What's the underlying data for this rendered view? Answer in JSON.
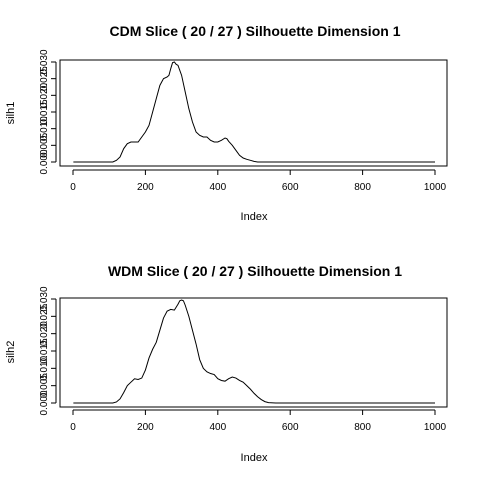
{
  "chart_data": [
    {
      "type": "line",
      "title": "CDM Slice ( 20 / 27 )  Silhouette Dimension 1",
      "xlabel": "Index",
      "ylabel": "silh1",
      "xlim": [
        0,
        1000
      ],
      "ylim": [
        0,
        0.031
      ],
      "xticks": [
        "0",
        "200",
        "400",
        "600",
        "800",
        "1000"
      ],
      "yticks": [
        "0.000",
        "0.005",
        "0.010",
        "0.015",
        "0.020",
        "0.025",
        "0.030"
      ],
      "grid": false,
      "series": [
        {
          "x": [
            1,
            110,
            120,
            130,
            140,
            150,
            160,
            170,
            180,
            190,
            200,
            210,
            220,
            230,
            240,
            250,
            260,
            265,
            270,
            275,
            280,
            285,
            290,
            300,
            310,
            320,
            330,
            340,
            350,
            360,
            370,
            380,
            390,
            400,
            410,
            420,
            425,
            430,
            440,
            450,
            460,
            470,
            480,
            490,
            500,
            510,
            520,
            600,
            700,
            800,
            900,
            1000
          ],
          "y": [
            0,
            0,
            0.0005,
            0.0015,
            0.004,
            0.0055,
            0.006,
            0.006,
            0.006,
            0.0075,
            0.009,
            0.011,
            0.015,
            0.019,
            0.023,
            0.025,
            0.0255,
            0.026,
            0.028,
            0.0298,
            0.03,
            0.0293,
            0.029,
            0.026,
            0.021,
            0.016,
            0.012,
            0.009,
            0.008,
            0.0075,
            0.0075,
            0.0065,
            0.006,
            0.006,
            0.0065,
            0.0072,
            0.007,
            0.0062,
            0.005,
            0.0035,
            0.002,
            0.0012,
            0.0008,
            0.0005,
            0.0002,
            0,
            0,
            0,
            0,
            0,
            0,
            0
          ]
        }
      ]
    },
    {
      "type": "line",
      "title": "WDM Slice ( 20 / 27 )  Silhouette Dimension 1",
      "xlabel": "Index",
      "ylabel": "silh2",
      "xlim": [
        0,
        1000
      ],
      "ylim": [
        0,
        0.031
      ],
      "xticks": [
        "0",
        "200",
        "400",
        "600",
        "800",
        "1000"
      ],
      "yticks": [
        "0.000",
        "0.005",
        "0.010",
        "0.015",
        "0.020",
        "0.025",
        "0.030"
      ],
      "grid": false,
      "series": [
        {
          "x": [
            1,
            110,
            120,
            130,
            140,
            150,
            160,
            170,
            180,
            190,
            200,
            210,
            220,
            230,
            240,
            250,
            260,
            270,
            280,
            290,
            295,
            300,
            305,
            310,
            320,
            330,
            340,
            350,
            360,
            370,
            380,
            390,
            400,
            410,
            420,
            430,
            440,
            450,
            460,
            470,
            480,
            490,
            500,
            510,
            520,
            530,
            540,
            560,
            600,
            700,
            800,
            900,
            1000
          ],
          "y": [
            0,
            0,
            0.0003,
            0.0012,
            0.003,
            0.005,
            0.006,
            0.007,
            0.0068,
            0.0072,
            0.0095,
            0.013,
            0.0155,
            0.0175,
            0.021,
            0.0245,
            0.0265,
            0.027,
            0.0268,
            0.0285,
            0.0295,
            0.0297,
            0.0295,
            0.0282,
            0.025,
            0.021,
            0.017,
            0.0125,
            0.01,
            0.009,
            0.0085,
            0.0082,
            0.007,
            0.0065,
            0.0063,
            0.007,
            0.0075,
            0.0072,
            0.0065,
            0.006,
            0.005,
            0.004,
            0.0028,
            0.0018,
            0.001,
            0.0004,
            0.0001,
            0,
            0,
            0,
            0,
            0,
            0
          ]
        }
      ]
    }
  ]
}
